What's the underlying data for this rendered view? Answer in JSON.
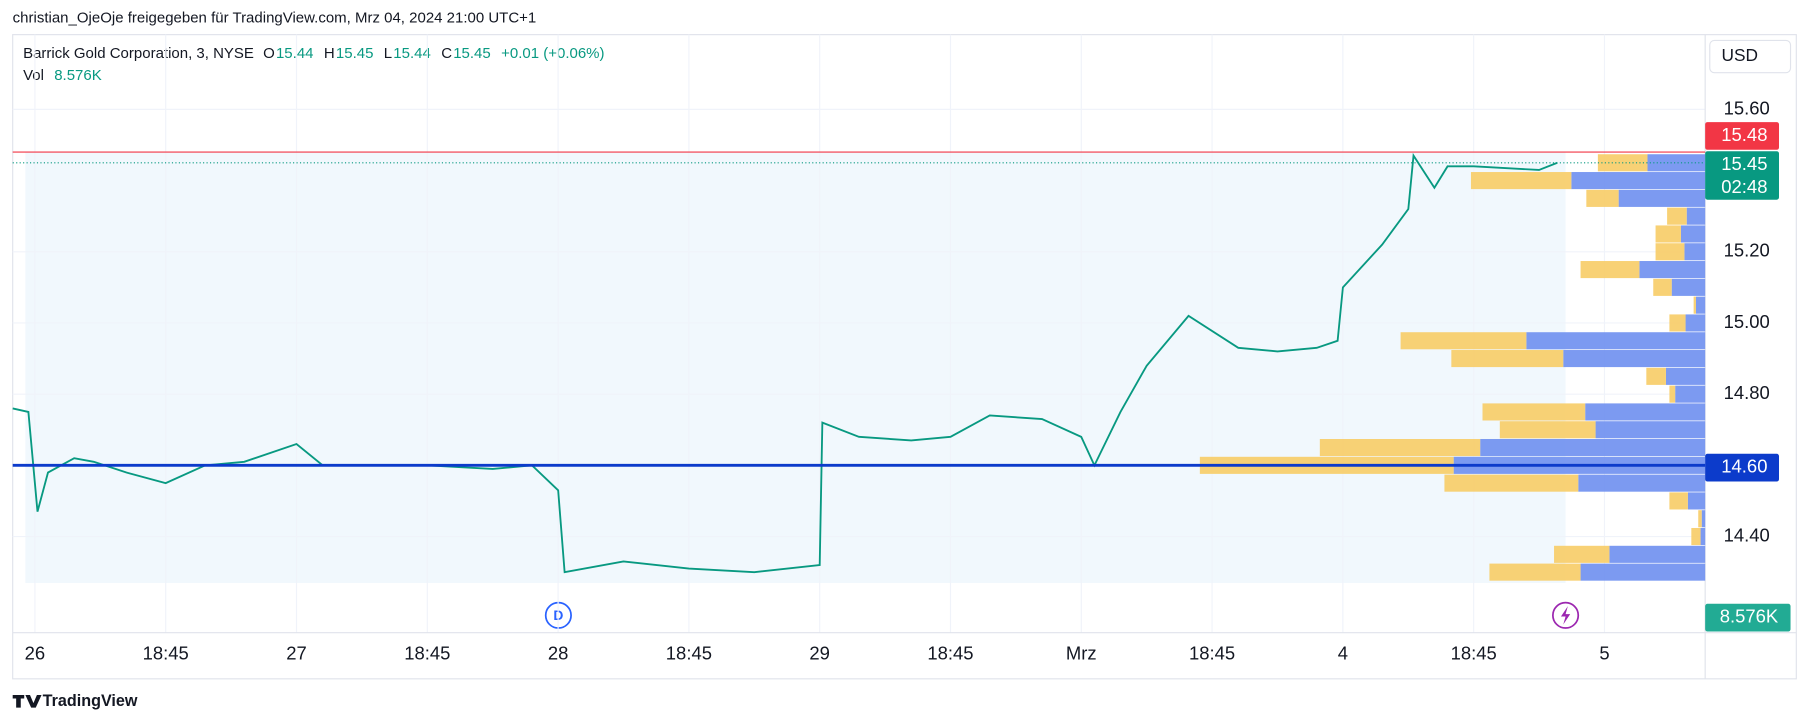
{
  "header": {
    "share_text": "christian_OjeOje freigegeben für TradingView.com, Mrz 04, 2024 21:00 UTC+1"
  },
  "chart_data": {
    "type": "line",
    "title": "Barrick Gold Corporation, 3, NYSE",
    "legend": {
      "o_label": "O",
      "open": 15.44,
      "h_label": "H",
      "high": 15.45,
      "l_label": "L",
      "low": 15.44,
      "c_label": "C",
      "close": 15.45,
      "change_text": "+0.01 (+0.06%)"
    },
    "volume_legend": {
      "label": "Vol",
      "value": 8576,
      "value_label": "8.576K"
    },
    "currency": "USD",
    "color": "#089981",
    "x": [
      -0.17,
      -0.05,
      0.02,
      0.1,
      0.3,
      0.45,
      0.7,
      1.0,
      1.3,
      1.6,
      2.0,
      2.2,
      2.5,
      3.0,
      3.5,
      3.8,
      4.0,
      4.05,
      4.5,
      5.0,
      5.5,
      6.0,
      6.02,
      6.3,
      6.7,
      7.0,
      7.3,
      7.7,
      8.0,
      8.1,
      8.3,
      8.5,
      8.82,
      9.2,
      9.5,
      9.8,
      9.96,
      10.0,
      10.3,
      10.5,
      10.54,
      10.7,
      10.8,
      11.0,
      11.5,
      11.64
    ],
    "values": [
      14.76,
      14.75,
      14.47,
      14.58,
      14.62,
      14.61,
      14.58,
      14.55,
      14.6,
      14.61,
      14.66,
      14.6,
      14.6,
      14.6,
      14.59,
      14.6,
      14.53,
      14.3,
      14.33,
      14.31,
      14.3,
      14.32,
      14.72,
      14.68,
      14.67,
      14.68,
      14.74,
      14.73,
      14.68,
      14.6,
      14.75,
      14.88,
      15.02,
      14.93,
      14.92,
      14.93,
      14.95,
      15.1,
      15.22,
      15.32,
      15.47,
      15.38,
      15.44,
      15.44,
      15.43,
      15.45
    ],
    "xlim": [
      -0.17,
      12.77
    ],
    "xticks": [
      {
        "value": 0,
        "label": "26"
      },
      {
        "value": 1,
        "label": "18:45"
      },
      {
        "value": 2,
        "label": "27"
      },
      {
        "value": 3,
        "label": "18:45"
      },
      {
        "value": 4,
        "label": "28"
      },
      {
        "value": 5,
        "label": "18:45"
      },
      {
        "value": 6,
        "label": "29"
      },
      {
        "value": 7,
        "label": "18:45"
      },
      {
        "value": 8,
        "label": "Mrz"
      },
      {
        "value": 9,
        "label": "18:45"
      },
      {
        "value": 10,
        "label": "4"
      },
      {
        "value": 11,
        "label": "18:45"
      },
      {
        "value": 12,
        "label": "5"
      }
    ],
    "ylim": [
      14.13,
      15.81
    ],
    "yticks": [
      {
        "value": 15.6,
        "label": "15.60"
      },
      {
        "value": 15.2,
        "label": "15.20"
      },
      {
        "value": 15.0,
        "label": "15.00"
      },
      {
        "value": 14.8,
        "label": "14.80"
      },
      {
        "value": 14.4,
        "label": "14.40"
      }
    ],
    "grid": true,
    "price_lines": [
      {
        "value": 15.48,
        "color": "#f23645"
      },
      {
        "value": 15.45,
        "color": "#089981",
        "countdown": "02:48"
      },
      {
        "value": 14.6,
        "label": "14.60",
        "color": "#0c3bcb"
      }
    ],
    "volume_profile": {
      "up_color": "#f7cc66",
      "down_color": "#6e8ff0",
      "rows": [
        {
          "price": 15.45,
          "up": 43,
          "down": 50
        },
        {
          "price": 15.4,
          "up": 87,
          "down": 116
        },
        {
          "price": 15.35,
          "up": 28,
          "down": 75
        },
        {
          "price": 15.3,
          "up": 17,
          "down": 16
        },
        {
          "price": 15.25,
          "up": 22,
          "down": 21
        },
        {
          "price": 15.2,
          "up": 25,
          "down": 18
        },
        {
          "price": 15.15,
          "up": 51,
          "down": 57
        },
        {
          "price": 15.1,
          "up": 16,
          "down": 29
        },
        {
          "price": 15.05,
          "up": 2,
          "down": 8
        },
        {
          "price": 15.0,
          "up": 14,
          "down": 17
        },
        {
          "price": 14.95,
          "up": 109,
          "down": 155
        },
        {
          "price": 14.9,
          "up": 97,
          "down": 123
        },
        {
          "price": 14.85,
          "up": 17,
          "down": 34
        },
        {
          "price": 14.8,
          "up": 5,
          "down": 26
        },
        {
          "price": 14.75,
          "up": 89,
          "down": 104
        },
        {
          "price": 14.7,
          "up": 83,
          "down": 95
        },
        {
          "price": 14.65,
          "up": 139,
          "down": 195
        },
        {
          "price": 14.6,
          "up": 220,
          "down": 218
        },
        {
          "price": 14.55,
          "up": 116,
          "down": 110
        },
        {
          "price": 14.5,
          "up": 16,
          "down": 15
        },
        {
          "price": 14.45,
          "up": 3,
          "down": 3
        },
        {
          "price": 14.4,
          "up": 8,
          "down": 4
        },
        {
          "price": 14.35,
          "up": 48,
          "down": 83
        },
        {
          "price": 14.3,
          "up": 79,
          "down": 108
        }
      ]
    },
    "dividend_marker": "D",
    "footer": "TradingView"
  }
}
